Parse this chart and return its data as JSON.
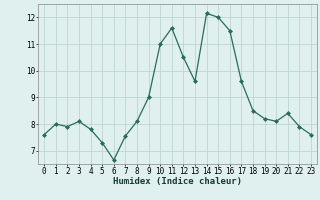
{
  "x": [
    0,
    1,
    2,
    3,
    4,
    5,
    6,
    7,
    8,
    9,
    10,
    11,
    12,
    13,
    14,
    15,
    16,
    17,
    18,
    19,
    20,
    21,
    22,
    23
  ],
  "y": [
    7.6,
    8.0,
    7.9,
    8.1,
    7.8,
    7.3,
    6.65,
    7.55,
    8.1,
    9.0,
    11.0,
    11.6,
    10.5,
    9.6,
    12.15,
    12.0,
    11.5,
    9.6,
    8.5,
    8.2,
    8.1,
    8.4,
    7.9,
    7.6
  ],
  "line_color": "#2a6b5e",
  "marker": "D",
  "marker_size": 2.0,
  "bg_color": "#dff0ee",
  "grid_color": "#b8d0cc",
  "xlabel": "Humidex (Indice chaleur)",
  "ylim": [
    6.5,
    12.5
  ],
  "xlim": [
    -0.5,
    23.5
  ],
  "yticks": [
    7,
    8,
    9,
    10,
    11,
    12
  ],
  "xticks": [
    0,
    1,
    2,
    3,
    4,
    5,
    6,
    7,
    8,
    9,
    10,
    11,
    12,
    13,
    14,
    15,
    16,
    17,
    18,
    19,
    20,
    21,
    22,
    23
  ],
  "xlabel_fontsize": 6.5,
  "tick_fontsize": 5.5,
  "line_width": 0.9
}
